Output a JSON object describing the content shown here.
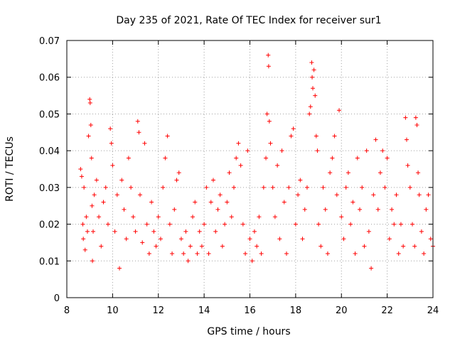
{
  "chart_data": {
    "type": "scatter",
    "title": "Day 235 of 2021, Rate Of TEC Index for receiver sur1",
    "xlabel": "GPS time / hours",
    "ylabel": "ROTI / TECUs",
    "xlim": [
      8,
      24
    ],
    "ylim": [
      0,
      0.07
    ],
    "xticks": [
      "8",
      "10",
      "12",
      "14",
      "16",
      "18",
      "20",
      "22",
      "24"
    ],
    "yticks": [
      "0",
      "0.01",
      "0.02",
      "0.03",
      "0.04",
      "0.05",
      "0.06",
      "0.07"
    ],
    "grid": true,
    "marker": "plus",
    "colors": {
      "points": "#ff0000",
      "grid": "#a0a0a0",
      "axis": "#000000"
    },
    "series": [
      {
        "points": [
          [
            8.6,
            0.035
          ],
          [
            8.65,
            0.033
          ],
          [
            8.7,
            0.02
          ],
          [
            8.72,
            0.016
          ],
          [
            8.75,
            0.03
          ],
          [
            8.8,
            0.013
          ],
          [
            8.85,
            0.022
          ],
          [
            8.9,
            0.018
          ],
          [
            8.95,
            0.044
          ],
          [
            9.0,
            0.054
          ],
          [
            9.02,
            0.053
          ],
          [
            9.05,
            0.047
          ],
          [
            9.08,
            0.038
          ],
          [
            9.1,
            0.025
          ],
          [
            9.12,
            0.01
          ],
          [
            9.15,
            0.018
          ],
          [
            9.2,
            0.028
          ],
          [
            9.3,
            0.032
          ],
          [
            9.4,
            0.022
          ],
          [
            9.5,
            0.014
          ],
          [
            9.6,
            0.026
          ],
          [
            9.7,
            0.03
          ],
          [
            9.8,
            0.02
          ],
          [
            9.9,
            0.046
          ],
          [
            9.95,
            0.042
          ],
          [
            10.0,
            0.036
          ],
          [
            10.1,
            0.018
          ],
          [
            10.2,
            0.028
          ],
          [
            10.3,
            0.008
          ],
          [
            10.4,
            0.032
          ],
          [
            10.5,
            0.024
          ],
          [
            10.6,
            0.016
          ],
          [
            10.7,
            0.038
          ],
          [
            10.8,
            0.03
          ],
          [
            10.9,
            0.022
          ],
          [
            11.0,
            0.018
          ],
          [
            11.1,
            0.048
          ],
          [
            11.15,
            0.045
          ],
          [
            11.2,
            0.028
          ],
          [
            11.3,
            0.015
          ],
          [
            11.4,
            0.042
          ],
          [
            11.5,
            0.02
          ],
          [
            11.6,
            0.012
          ],
          [
            11.7,
            0.026
          ],
          [
            11.8,
            0.018
          ],
          [
            11.9,
            0.014
          ],
          [
            12.0,
            0.022
          ],
          [
            12.1,
            0.016
          ],
          [
            12.2,
            0.03
          ],
          [
            12.3,
            0.038
          ],
          [
            12.4,
            0.044
          ],
          [
            12.5,
            0.02
          ],
          [
            12.6,
            0.012
          ],
          [
            12.7,
            0.024
          ],
          [
            12.8,
            0.032
          ],
          [
            12.9,
            0.034
          ],
          [
            13.0,
            0.016
          ],
          [
            13.1,
            0.012
          ],
          [
            13.2,
            0.018
          ],
          [
            13.3,
            0.01
          ],
          [
            13.4,
            0.014
          ],
          [
            13.5,
            0.022
          ],
          [
            13.6,
            0.026
          ],
          [
            13.7,
            0.012
          ],
          [
            13.8,
            0.018
          ],
          [
            13.9,
            0.014
          ],
          [
            14.0,
            0.02
          ],
          [
            14.1,
            0.03
          ],
          [
            14.2,
            0.012
          ],
          [
            14.3,
            0.026
          ],
          [
            14.4,
            0.032
          ],
          [
            14.5,
            0.018
          ],
          [
            14.6,
            0.024
          ],
          [
            14.7,
            0.028
          ],
          [
            14.8,
            0.014
          ],
          [
            14.9,
            0.02
          ],
          [
            15.0,
            0.026
          ],
          [
            15.1,
            0.034
          ],
          [
            15.2,
            0.022
          ],
          [
            15.3,
            0.03
          ],
          [
            15.4,
            0.038
          ],
          [
            15.5,
            0.042
          ],
          [
            15.6,
            0.036
          ],
          [
            15.7,
            0.02
          ],
          [
            15.8,
            0.012
          ],
          [
            15.9,
            0.04
          ],
          [
            16.0,
            0.016
          ],
          [
            16.1,
            0.01
          ],
          [
            16.2,
            0.018
          ],
          [
            16.3,
            0.014
          ],
          [
            16.4,
            0.022
          ],
          [
            16.5,
            0.012
          ],
          [
            16.6,
            0.03
          ],
          [
            16.7,
            0.038
          ],
          [
            16.75,
            0.05
          ],
          [
            16.8,
            0.066
          ],
          [
            16.82,
            0.063
          ],
          [
            16.85,
            0.048
          ],
          [
            16.9,
            0.042
          ],
          [
            17.0,
            0.03
          ],
          [
            17.1,
            0.022
          ],
          [
            17.2,
            0.036
          ],
          [
            17.3,
            0.016
          ],
          [
            17.4,
            0.04
          ],
          [
            17.5,
            0.026
          ],
          [
            17.6,
            0.012
          ],
          [
            17.7,
            0.03
          ],
          [
            17.8,
            0.044
          ],
          [
            17.9,
            0.046
          ],
          [
            18.0,
            0.02
          ],
          [
            18.1,
            0.028
          ],
          [
            18.2,
            0.032
          ],
          [
            18.3,
            0.016
          ],
          [
            18.4,
            0.024
          ],
          [
            18.5,
            0.03
          ],
          [
            18.6,
            0.05
          ],
          [
            18.65,
            0.052
          ],
          [
            18.7,
            0.064
          ],
          [
            18.72,
            0.06
          ],
          [
            18.75,
            0.057
          ],
          [
            18.8,
            0.062
          ],
          [
            18.85,
            0.055
          ],
          [
            18.9,
            0.044
          ],
          [
            18.95,
            0.04
          ],
          [
            19.0,
            0.02
          ],
          [
            19.1,
            0.014
          ],
          [
            19.2,
            0.03
          ],
          [
            19.3,
            0.024
          ],
          [
            19.4,
            0.012
          ],
          [
            19.5,
            0.034
          ],
          [
            19.6,
            0.038
          ],
          [
            19.7,
            0.044
          ],
          [
            19.8,
            0.028
          ],
          [
            19.9,
            0.051
          ],
          [
            20.0,
            0.022
          ],
          [
            20.1,
            0.016
          ],
          [
            20.2,
            0.03
          ],
          [
            20.3,
            0.034
          ],
          [
            20.4,
            0.02
          ],
          [
            20.5,
            0.026
          ],
          [
            20.6,
            0.012
          ],
          [
            20.7,
            0.038
          ],
          [
            20.8,
            0.024
          ],
          [
            20.9,
            0.03
          ],
          [
            21.0,
            0.014
          ],
          [
            21.1,
            0.04
          ],
          [
            21.2,
            0.018
          ],
          [
            21.3,
            0.008
          ],
          [
            21.4,
            0.028
          ],
          [
            21.5,
            0.043
          ],
          [
            21.6,
            0.024
          ],
          [
            21.7,
            0.034
          ],
          [
            21.8,
            0.04
          ],
          [
            21.9,
            0.03
          ],
          [
            22.0,
            0.038
          ],
          [
            22.1,
            0.016
          ],
          [
            22.2,
            0.024
          ],
          [
            22.3,
            0.02
          ],
          [
            22.4,
            0.028
          ],
          [
            22.5,
            0.012
          ],
          [
            22.6,
            0.02
          ],
          [
            22.7,
            0.014
          ],
          [
            22.8,
            0.049
          ],
          [
            22.85,
            0.043
          ],
          [
            22.9,
            0.036
          ],
          [
            23.0,
            0.03
          ],
          [
            23.1,
            0.02
          ],
          [
            23.2,
            0.014
          ],
          [
            23.25,
            0.049
          ],
          [
            23.3,
            0.047
          ],
          [
            23.35,
            0.034
          ],
          [
            23.4,
            0.028
          ],
          [
            23.5,
            0.018
          ],
          [
            23.6,
            0.012
          ],
          [
            23.7,
            0.024
          ],
          [
            23.8,
            0.028
          ],
          [
            23.9,
            0.016
          ],
          [
            24.0,
            0.014
          ]
        ]
      }
    ]
  }
}
